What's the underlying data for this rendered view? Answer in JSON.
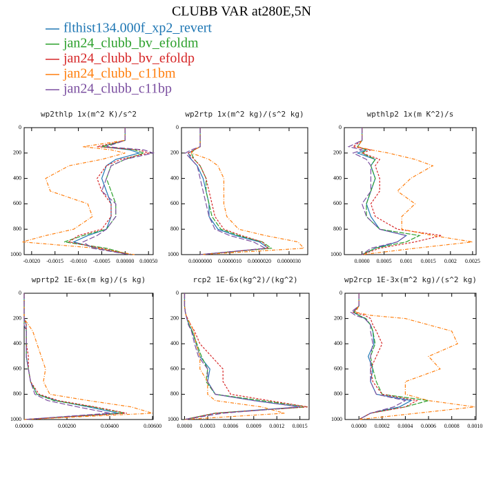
{
  "title": "CLUBB VAR at280E,5N",
  "chart_data": [
    {
      "type": "profile",
      "title": "wp2thlp  1x(m^2 K)/s^2",
      "yreverse": true,
      "y": [
        0,
        100,
        150,
        175,
        200,
        250,
        300,
        400,
        500,
        600,
        700,
        800,
        850,
        900,
        950,
        1000
      ],
      "xlim": [
        -0.00216,
        0.0006
      ],
      "ylim": [
        0,
        1000
      ],
      "xticks": [
        {
          "value": -0.002,
          "label": "-0.0020"
        },
        {
          "value": -0.0015,
          "label": "-0.0015"
        },
        {
          "value": -0.001,
          "label": "-0.0010"
        },
        {
          "value": -0.0005,
          "label": "-0.0005"
        },
        {
          "value": 0,
          "label": "0.00000"
        },
        {
          "value": 0.0005,
          "label": "0.00050"
        }
      ],
      "yticks": [
        0,
        200,
        400,
        600,
        800,
        1000
      ],
      "series": [
        {
          "name": "flthist134.000f_xp2_revert",
          "color": "#1f77b4",
          "values": [
            0,
            0,
            -0.0005,
            0.0001,
            0.0003,
            -0.0002,
            -0.0004,
            -0.0005,
            -0.0004,
            -0.0003,
            -0.0003,
            -0.0004,
            -0.0008,
            -0.0011,
            -0.0006,
            0.0001
          ]
        },
        {
          "name": "jan24_clubb_bv_efoldm",
          "color": "#2ca02c",
          "values": [
            0,
            0,
            -0.0005,
            0.0002,
            0.0004,
            0,
            -0.0003,
            -0.0004,
            -0.0003,
            -0.0002,
            -0.0002,
            -0.0004,
            -0.0009,
            -0.0013,
            -0.0004,
            0.0001
          ]
        },
        {
          "name": "jan24_clubb_bv_efoldp",
          "color": "#d62728",
          "values": [
            0,
            0,
            -0.0006,
            0.0003,
            0.0005,
            -0.0001,
            -0.0004,
            -0.0006,
            -0.0005,
            -0.0003,
            -0.0003,
            -0.0005,
            -0.001,
            -0.0012,
            -0.0005,
            0.0001
          ]
        },
        {
          "name": "jan24_clubb_c11bm",
          "color": "#ff7f0e",
          "values": [
            0,
            0,
            -0.0009,
            -0.0003,
            0,
            -0.0005,
            -0.0012,
            -0.0017,
            -0.0016,
            -0.0008,
            -0.0007,
            -0.0011,
            -0.0017,
            -0.0022,
            -0.0006,
            0.0002
          ]
        },
        {
          "name": "jan24_clubb_c11bp",
          "color": "#7b4fa0",
          "values": [
            0,
            0,
            -0.0004,
            0.0004,
            0.0006,
            0,
            -0.0003,
            -0.0004,
            -0.0005,
            -0.0002,
            -0.0002,
            -0.0004,
            -0.0006,
            -0.0009,
            -0.0007,
            0.0001
          ]
        }
      ]
    },
    {
      "type": "profile",
      "title": "wp2rtp  1x(m^2 kg)/(s^2 kg)",
      "yreverse": true,
      "y": [
        0,
        100,
        150,
        175,
        200,
        250,
        300,
        400,
        500,
        600,
        700,
        800,
        850,
        900,
        950,
        1000
      ],
      "xlim": [
        -6.3e-07,
        3.63e-06
      ],
      "ylim": [
        0,
        1000
      ],
      "xticks": [
        {
          "value": 0,
          "label": "0.0000000"
        },
        {
          "value": 1e-06,
          "label": "0.0000010"
        },
        {
          "value": 2e-06,
          "label": "0.0000020"
        },
        {
          "value": 3e-06,
          "label": "0.0000030"
        }
      ],
      "yticks": [
        0,
        200,
        400,
        600,
        800,
        1000
      ],
      "series": [
        {
          "color": "#1f77b4",
          "values": [
            0,
            0,
            0,
            -2e-07,
            -4e-07,
            -3e-07,
            -1e-07,
            1e-07,
            2e-07,
            3e-07,
            3e-07,
            6e-07,
            1.2e-06,
            2e-06,
            2.3e-06,
            0
          ]
        },
        {
          "color": "#2ca02c",
          "values": [
            0,
            0,
            0,
            -2e-07,
            -3e-07,
            -2e-07,
            0,
            2e-07,
            2e-07,
            3e-07,
            4e-07,
            7e-07,
            1.3e-06,
            2.1e-06,
            2.4e-06,
            0
          ]
        },
        {
          "color": "#d62728",
          "values": [
            0,
            0,
            0,
            -2e-07,
            -4e-07,
            -2e-07,
            0,
            2e-07,
            3e-07,
            4e-07,
            5e-07,
            8e-07,
            1.4e-06,
            2.1e-06,
            2.3e-06,
            0
          ]
        },
        {
          "color": "#ff7f0e",
          "values": [
            0,
            0,
            0,
            -2e-07,
            -3e-07,
            3e-07,
            6e-07,
            8e-07,
            8e-07,
            8e-07,
            9e-07,
            1.3e-06,
            2.2e-06,
            3.3e-06,
            3.5e-06,
            0
          ]
        },
        {
          "color": "#7b4fa0",
          "values": [
            0,
            0,
            0,
            -3e-07,
            -5e-07,
            -3e-07,
            -1e-07,
            0,
            1e-07,
            2e-07,
            3e-07,
            5e-07,
            1e-06,
            1.8e-06,
            2.2e-06,
            0
          ]
        }
      ]
    },
    {
      "type": "profile",
      "title": "wpthlp2  1x(m K^2)/s",
      "yreverse": true,
      "y": [
        0,
        100,
        150,
        175,
        200,
        250,
        300,
        400,
        500,
        600,
        700,
        800,
        850,
        900,
        950,
        1000
      ],
      "xlim": [
        -0.0004,
        0.00258
      ],
      "ylim": [
        0,
        1000
      ],
      "xticks": [
        {
          "value": 0,
          "label": "0.0000"
        },
        0.0005,
        0.001,
        0.0015,
        0.002,
        0.0025
      ],
      "yticks": [
        0,
        200,
        400,
        600,
        800,
        1000
      ],
      "series": [
        {
          "color": "#1f77b4",
          "values": [
            0,
            0,
            -0.0001,
            0.0001,
            -0.0001,
            0.0003,
            0.0002,
            0.0003,
            0.0002,
            0.0001,
            0.0002,
            0.0004,
            0.001,
            0.0008,
            0.0003,
            0
          ]
        },
        {
          "color": "#2ca02c",
          "values": [
            0,
            0,
            -0.0001,
            0.0001,
            0,
            0.0003,
            0.0002,
            0.0003,
            0.0002,
            0.0001,
            0.0001,
            0.0004,
            0.0013,
            0.001,
            0.0003,
            0
          ]
        },
        {
          "color": "#d62728",
          "values": [
            0,
            0,
            -0.0002,
            0.0002,
            0,
            0.0004,
            0.0003,
            0.0004,
            0.0004,
            0.0002,
            0.0003,
            0.0008,
            0.0018,
            0.0012,
            0.0004,
            0
          ]
        },
        {
          "color": "#ff7f0e",
          "values": [
            0,
            0,
            -0.0001,
            0.0002,
            0.0006,
            0.0012,
            0.0016,
            0.0011,
            0.0008,
            0.0012,
            0.0009,
            0.0009,
            0.0016,
            0.0025,
            0.0012,
            0
          ]
        },
        {
          "color": "#7b4fa0",
          "values": [
            0,
            0,
            -0.0003,
            0,
            -0.0002,
            0.0001,
            0.0002,
            0.0002,
            0.0002,
            0,
            0.0001,
            0.0004,
            0.001,
            0.0008,
            0.0002,
            0
          ]
        }
      ]
    },
    {
      "type": "profile",
      "title": "wprtp2  1E-6x(m kg)/(s kg)",
      "yreverse": true,
      "y": [
        0,
        100,
        150,
        175,
        200,
        250,
        300,
        400,
        500,
        600,
        700,
        800,
        850,
        900,
        950,
        1000
      ],
      "xlim": [
        0,
        0.00603
      ],
      "ylim": [
        0,
        1000
      ],
      "xticks": [
        {
          "value": 0,
          "label": "0.00000"
        },
        {
          "value": 0.002,
          "label": "0.00200"
        },
        {
          "value": 0.004,
          "label": "0.00400"
        },
        {
          "value": 0.006,
          "label": "0.00600"
        }
      ],
      "yticks": [
        0,
        200,
        400,
        600,
        800,
        1000
      ],
      "series": [
        {
          "color": "#1f77b4",
          "values": [
            0,
            0,
            0,
            0,
            0,
            0.0001,
            0.0001,
            0.0001,
            0.0001,
            0.0002,
            0.0003,
            0.0006,
            0.0015,
            0.003,
            0.0044,
            0
          ]
        },
        {
          "color": "#2ca02c",
          "values": [
            0,
            0,
            0,
            0,
            0,
            0,
            0.0001,
            0.0001,
            0.0001,
            0.0002,
            0.0003,
            0.0006,
            0.0014,
            0.0032,
            0.0047,
            0
          ]
        },
        {
          "color": "#d62728",
          "values": [
            0,
            0,
            0,
            0,
            0,
            0.0001,
            0.0001,
            0.0001,
            0.0002,
            0.0002,
            0.0003,
            0.0007,
            0.0016,
            0.0033,
            0.0048,
            0
          ]
        },
        {
          "color": "#ff7f0e",
          "values": [
            0,
            0,
            0,
            0,
            0,
            0.0002,
            0.0004,
            0.0006,
            0.0008,
            0.001,
            0.0009,
            0.0012,
            0.003,
            0.005,
            0.006,
            0
          ]
        },
        {
          "color": "#7b4fa0",
          "values": [
            0,
            0,
            0,
            0,
            0,
            0,
            0.0001,
            0.0001,
            0.0001,
            0.0002,
            0.0003,
            0.0005,
            0.0011,
            0.0025,
            0.004,
            0
          ]
        }
      ]
    },
    {
      "type": "profile",
      "title": "rcp2  1E-6x(kg^2)/(kg^2)",
      "yreverse": true,
      "y": [
        0,
        100,
        150,
        175,
        200,
        250,
        300,
        400,
        500,
        600,
        700,
        800,
        850,
        900,
        950,
        1000
      ],
      "xlim": [
        -4e-05,
        0.00162
      ],
      "ylim": [
        0,
        1000
      ],
      "xticks": [
        {
          "value": 0,
          "label": "0.0000"
        },
        0.0003,
        0.0006,
        0.0009,
        0.0012,
        0.0015
      ],
      "yticks": [
        0,
        200,
        400,
        600,
        800,
        1000
      ],
      "series": [
        {
          "color": "#1f77b4",
          "values": [
            0,
            0,
            1e-05,
            2e-05,
            3e-05,
            6e-05,
            0.0001,
            0.00015,
            0.0002,
            0.00033,
            0.0003,
            0.0004,
            0.0009,
            0.0015,
            0.0004,
            0
          ]
        },
        {
          "color": "#2ca02c",
          "values": [
            0,
            0,
            1e-05,
            2e-05,
            3e-05,
            6e-05,
            0.0001,
            0.00016,
            0.00022,
            0.0003,
            0.00028,
            0.0004,
            0.001,
            0.0016,
            0.0004,
            0
          ]
        },
        {
          "color": "#d62728",
          "values": [
            0,
            0,
            1e-05,
            2e-05,
            4e-05,
            8e-05,
            0.00013,
            0.0002,
            0.00035,
            0.0005,
            0.0005,
            0.0006,
            0.0011,
            0.0016,
            0.0004,
            0
          ]
        },
        {
          "color": "#ff7f0e",
          "values": [
            0,
            0,
            1e-05,
            2e-05,
            4e-05,
            8e-05,
            0.00012,
            0.00015,
            0.0002,
            0.0002,
            0.0003,
            0.0003,
            0.0004,
            0.001,
            0.0013,
            0
          ]
        },
        {
          "color": "#7b4fa0",
          "values": [
            0,
            0,
            1e-05,
            2e-05,
            3e-05,
            5e-05,
            9e-05,
            0.00013,
            0.00018,
            0.0003,
            0.0003,
            0.0004,
            0.0009,
            0.0015,
            0.0005,
            0
          ]
        }
      ]
    },
    {
      "type": "profile",
      "title": "wp2rcp  1E-3x(m^2 kg)/(s^2 kg)",
      "yreverse": true,
      "y": [
        0,
        100,
        150,
        175,
        200,
        250,
        300,
        400,
        500,
        600,
        700,
        800,
        850,
        900,
        950,
        1000
      ],
      "xlim": [
        -0.00012,
        0.00101
      ],
      "ylim": [
        0,
        1000
      ],
      "xticks": [
        {
          "value": 0,
          "label": "0.0000"
        },
        0.0002,
        0.0004,
        0.0006,
        0.0008,
        {
          "value": 0.001,
          "label": "0.0010"
        }
      ],
      "yticks": [
        0,
        200,
        400,
        600,
        800,
        1000
      ],
      "series": [
        {
          "color": "#1f77b4",
          "values": [
            0,
            0,
            -5e-05,
            0,
            5e-05,
            0.0001,
            0.00012,
            0.00013,
            8e-05,
            0.00012,
            0.0001,
            0.00015,
            0.00045,
            0.00035,
            0.0001,
            0
          ]
        },
        {
          "color": "#2ca02c",
          "values": [
            0,
            0,
            -4e-05,
            0,
            6e-05,
            0.0001,
            0.00012,
            0.00014,
            0.0001,
            0.00012,
            0.00015,
            0.0002,
            0.0006,
            0.0004,
            0.0001,
            0
          ]
        },
        {
          "color": "#d62728",
          "values": [
            0,
            0,
            -5e-05,
            5e-05,
            0.0001,
            0.00012,
            0.00015,
            0.0002,
            0.00015,
            0.0001,
            0.00012,
            0.0002,
            0.0005,
            0.0004,
            0.0001,
            0
          ]
        },
        {
          "color": "#ff7f0e",
          "values": [
            0,
            0,
            -3e-05,
            0.0001,
            0.0004,
            0.0006,
            0.0008,
            0.00085,
            0.0006,
            0.0007,
            0.0004,
            0.0004,
            0.0006,
            0.001,
            0.0005,
            0
          ]
        },
        {
          "color": "#7b4fa0",
          "values": [
            0,
            0,
            -7e-05,
            -3e-05,
            5e-05,
            0.0001,
            0.0001,
            0.00012,
            0.0001,
            0.0001,
            0.0001,
            0.00015,
            0.0004,
            0.0003,
            0.0001,
            0
          ]
        }
      ]
    }
  ]
}
